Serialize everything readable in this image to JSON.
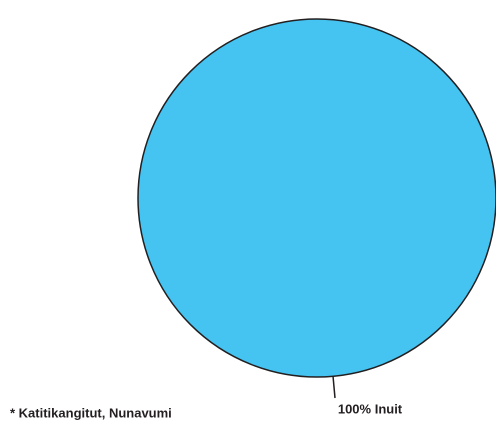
{
  "chart_data": {
    "type": "pie",
    "values": [
      100
    ],
    "value_labels": [
      "100% Inuit"
    ],
    "colors": [
      "#45c4f2"
    ],
    "footnote": "* Katitikangitut, Nunavumi"
  }
}
